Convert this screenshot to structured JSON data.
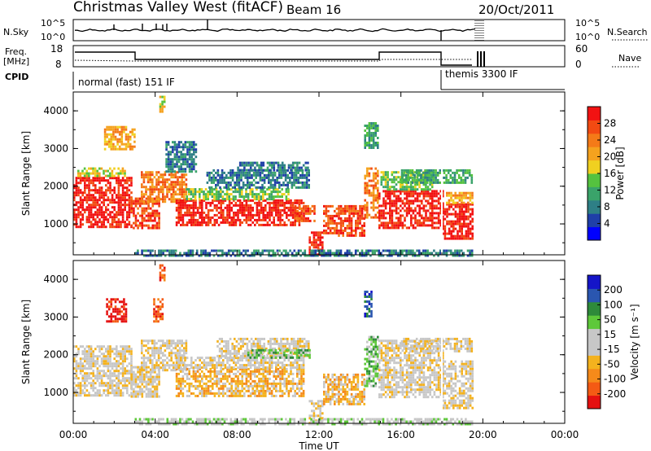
{
  "header": {
    "title": "Christmas Valley West (fitACF)",
    "beam": "Beam 16",
    "date": "20/Oct/2011"
  },
  "top_panels": {
    "nsky": {
      "label": "N.Sky",
      "left_ticks": [
        "10^5",
        "10^0"
      ],
      "right_ticks": [
        "10^5",
        "10^0"
      ],
      "right_label": "N.Search"
    },
    "freq": {
      "label_line1": "Freq.",
      "label_line2": "[MHz]",
      "left_ticks": [
        "18",
        "8"
      ],
      "right_ticks": [
        "60",
        "0"
      ],
      "right_label": "Nave"
    },
    "cpid": {
      "label": "CPID",
      "modes": [
        "normal (fast) 151 IF",
        "themis 3300 IF"
      ]
    }
  },
  "colors": {
    "power": [
      "#0000ff",
      "#1f3fa8",
      "#2e7f86",
      "#3aa36a",
      "#55c23f",
      "#f0d020",
      "#f5a21e",
      "#f47a18",
      "#f24a12",
      "#f21212"
    ],
    "velocity": [
      "#e51010",
      "#f45a14",
      "#f58a1a",
      "#f4b21e",
      "#c7c7c7",
      "#c7c7c7",
      "#5ec83a",
      "#2e8a3a",
      "#2a56b0",
      "#1515c8"
    ],
    "gray": "#c8c8c8"
  },
  "chart_data": [
    {
      "type": "heatmap",
      "name": "power",
      "xlabel": "Time UT",
      "ylabel": "Slant Range [km]",
      "colorbar_label": "Power [dB]",
      "colorbar_ticks": [
        "4",
        "8",
        "12",
        "16",
        "20",
        "24",
        "28"
      ],
      "x_tick_labels": [
        "00:00",
        "04:00",
        "08:00",
        "12:00",
        "16:00",
        "20:00",
        "00:00"
      ],
      "y_tick_labels": [
        "1000",
        "2000",
        "3000",
        "4000"
      ],
      "xlim": [
        0,
        24
      ],
      "ylim": [
        180,
        4500
      ],
      "grid": false,
      "regions": [
        {
          "t": [
            0.0,
            2.8
          ],
          "r": [
            950,
            2250
          ],
          "level": 9
        },
        {
          "t": [
            0.2,
            2.5
          ],
          "r": [
            2250,
            2500
          ],
          "level": 5
        },
        {
          "t": [
            1.5,
            3.0
          ],
          "r": [
            3000,
            3600
          ],
          "level": 6
        },
        {
          "t": [
            2.8,
            4.2
          ],
          "r": [
            900,
            1700
          ],
          "level": 8
        },
        {
          "t": [
            3.3,
            5.5
          ],
          "r": [
            1600,
            2400
          ],
          "level": 7
        },
        {
          "t": [
            4.5,
            6.0
          ],
          "r": [
            2400,
            3200
          ],
          "level": 2
        },
        {
          "t": [
            4.2,
            4.5
          ],
          "r": [
            4000,
            4400
          ],
          "level": 5
        },
        {
          "t": [
            5.0,
            11.2
          ],
          "r": [
            950,
            1650
          ],
          "level": 9
        },
        {
          "t": [
            5.5,
            10.5
          ],
          "r": [
            1650,
            1950
          ],
          "level": 4
        },
        {
          "t": [
            6.5,
            11.5
          ],
          "r": [
            1950,
            2450
          ],
          "level": 2
        },
        {
          "t": [
            8.0,
            11.5
          ],
          "r": [
            2400,
            2650
          ],
          "level": 2
        },
        {
          "t": [
            10.8,
            11.8
          ],
          "r": [
            1050,
            1500
          ],
          "level": 8
        },
        {
          "t": [
            11.5,
            12.2
          ],
          "r": [
            200,
            800
          ],
          "level": 9
        },
        {
          "t": [
            12.2,
            14.2
          ],
          "r": [
            700,
            1500
          ],
          "level": 8
        },
        {
          "t": [
            14.2,
            14.9
          ],
          "r": [
            1200,
            2500
          ],
          "level": 7
        },
        {
          "t": [
            14.2,
            14.9
          ],
          "r": [
            3000,
            3700
          ],
          "level": 3
        },
        {
          "t": [
            14.9,
            18.0
          ],
          "r": [
            900,
            1900
          ],
          "level": 9
        },
        {
          "t": [
            15.0,
            17.5
          ],
          "r": [
            1900,
            2400
          ],
          "level": 4
        },
        {
          "t": [
            16.0,
            19.5
          ],
          "r": [
            2100,
            2450
          ],
          "level": 3
        },
        {
          "t": [
            18.0,
            19.5
          ],
          "r": [
            600,
            1550
          ],
          "level": 9
        },
        {
          "t": [
            18.2,
            19.5
          ],
          "r": [
            1550,
            1850
          ],
          "level": 6
        },
        {
          "t": [
            3.0,
            19.5
          ],
          "r": [
            180,
            320
          ],
          "level": 2
        }
      ]
    },
    {
      "type": "heatmap",
      "name": "velocity",
      "xlabel": "Time UT",
      "ylabel": "Slant Range [km]",
      "colorbar_label": "Velocity [m s⁻¹]",
      "colorbar_ticks": [
        "-200",
        "-100",
        "-50",
        "-15",
        "15",
        "50",
        "100",
        "200"
      ],
      "x_tick_labels": [
        "00:00",
        "04:00",
        "08:00",
        "12:00",
        "16:00",
        "20:00",
        "00:00"
      ],
      "y_tick_labels": [
        "1000",
        "2000",
        "3000",
        "4000"
      ],
      "xlim": [
        0,
        24
      ],
      "ylim": [
        180,
        4500
      ],
      "grid": false,
      "regions": [
        {
          "t": [
            0.0,
            2.8
          ],
          "r": [
            950,
            2250
          ],
          "level": 4
        },
        {
          "t": [
            1.6,
            2.6
          ],
          "r": [
            2900,
            3500
          ],
          "level": 0
        },
        {
          "t": [
            2.8,
            4.2
          ],
          "r": [
            900,
            1700
          ],
          "level": 4
        },
        {
          "t": [
            3.3,
            5.5
          ],
          "r": [
            1600,
            2400
          ],
          "level": 4
        },
        {
          "t": [
            4.2,
            4.5
          ],
          "r": [
            4000,
            4400
          ],
          "level": 1
        },
        {
          "t": [
            3.9,
            4.4
          ],
          "r": [
            2900,
            3500
          ],
          "level": 1
        },
        {
          "t": [
            5.0,
            11.2
          ],
          "r": [
            900,
            1650
          ],
          "level": 3
        },
        {
          "t": [
            5.0,
            11.2
          ],
          "r": [
            1650,
            1950
          ],
          "level": 4
        },
        {
          "t": [
            7.0,
            11.5
          ],
          "r": [
            1950,
            2450
          ],
          "level": 4
        },
        {
          "t": [
            8.5,
            11.5
          ],
          "r": [
            1950,
            2150
          ],
          "level": 6
        },
        {
          "t": [
            11.5,
            12.2
          ],
          "r": [
            200,
            800
          ],
          "level": 4
        },
        {
          "t": [
            12.2,
            14.2
          ],
          "r": [
            700,
            1500
          ],
          "level": 3
        },
        {
          "t": [
            14.2,
            14.9
          ],
          "r": [
            1200,
            2500
          ],
          "level": 6
        },
        {
          "t": [
            14.2,
            14.6
          ],
          "r": [
            3000,
            3700
          ],
          "level": 8
        },
        {
          "t": [
            14.9,
            18.0
          ],
          "r": [
            900,
            2400
          ],
          "level": 4
        },
        {
          "t": [
            16.0,
            19.5
          ],
          "r": [
            2100,
            2450
          ],
          "level": 4
        },
        {
          "t": [
            18.0,
            19.5
          ],
          "r": [
            600,
            1850
          ],
          "level": 4
        },
        {
          "t": [
            3.0,
            19.5
          ],
          "r": [
            180,
            320
          ],
          "level": 5
        }
      ]
    }
  ]
}
